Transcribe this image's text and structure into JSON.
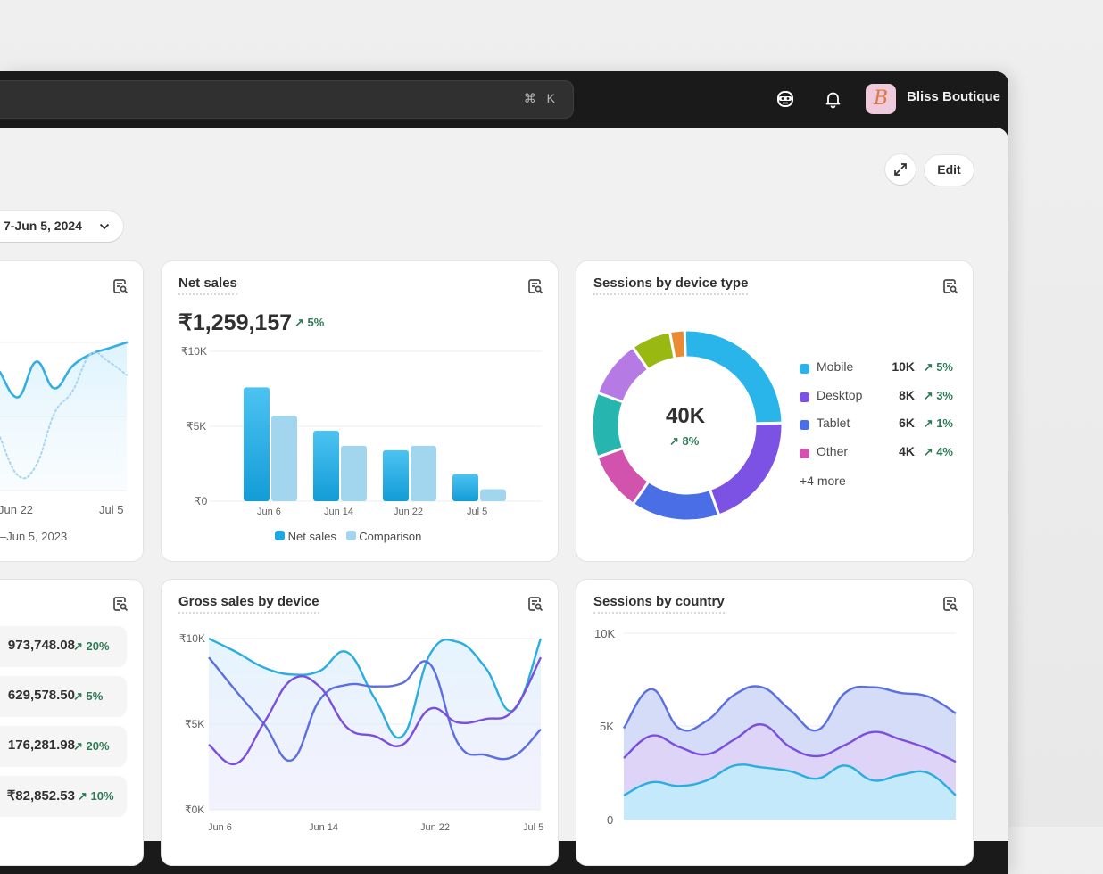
{
  "topbar": {
    "search_shortcut": "⌘ K",
    "store_name": "Bliss Boutique",
    "avatar_letter": "B",
    "icons": [
      "sidekick-face-icon",
      "bell-icon"
    ]
  },
  "header": {
    "edit_label": "Edit",
    "date_range": "7-Jun 5, 2024",
    "expand_icon": "expand-arrows-icon"
  },
  "cards": {
    "partial_line": {
      "x_ticks": [
        "Jun 22",
        "Jul 5"
      ],
      "comparison_range": "–Jun 5, 2023"
    },
    "net_sales": {
      "title": "Net sales",
      "value": "₹1,259,157",
      "change": "5%",
      "y_ticks": [
        "₹10K",
        "₹5K",
        "₹0"
      ],
      "x_ticks": [
        "Jun 6",
        "Jun 14",
        "Jun 22",
        "Jul 5"
      ],
      "legend": [
        "Net sales",
        "Comparison"
      ]
    },
    "device": {
      "title": "Sessions by device type",
      "total": "40K",
      "change": "8%",
      "legend": [
        {
          "label": "Mobile",
          "value": "10K",
          "change": "5%",
          "color": "#29b5ea"
        },
        {
          "label": "Desktop",
          "value": "8K",
          "change": "3%",
          "color": "#7b52e3"
        },
        {
          "label": "Tablet",
          "value": "6K",
          "change": "1%",
          "color": "#4a6ee6"
        },
        {
          "label": "Other",
          "value": "4K",
          "change": "4%",
          "color": "#d253ad"
        }
      ],
      "more": "+4 more"
    },
    "list": {
      "rows": [
        {
          "value": "973,748.08",
          "change": "20%"
        },
        {
          "value": "629,578.50",
          "change": "5%"
        },
        {
          "value": "176,281.98",
          "change": "20%"
        },
        {
          "value": "₹82,852.53",
          "change": "10%"
        }
      ]
    },
    "gross": {
      "title": "Gross sales by device",
      "y_ticks": [
        "₹10K",
        "₹5K",
        "₹0K"
      ],
      "x_ticks": [
        "Jun 6",
        "Jun 14",
        "Jun 22",
        "Jul 5"
      ]
    },
    "country": {
      "title": "Sessions by country",
      "y_ticks": [
        "10K",
        "5K",
        "0"
      ]
    }
  },
  "colors": {
    "trend_green": "#2f7a56",
    "net_sales": "#1ea7e4",
    "comparison": "#a1d6ee",
    "cyan": "#2aaee0",
    "indigo": "#5c6fe0",
    "purple": "#7b4fdc"
  },
  "chart_data": [
    {
      "type": "line",
      "series": [
        {
          "values": [
            8.0,
            6.3,
            8.7,
            6.9,
            8.4,
            9.2,
            9.6,
            10.0
          ],
          "style": "solid"
        },
        {
          "values": [
            3.6,
            1.0,
            1.7,
            5.2,
            6.7,
            9.2,
            8.7,
            7.8
          ],
          "style": "dotted"
        }
      ],
      "x_ticks": [
        "Jun 22",
        "Jul 5"
      ],
      "ylim": [
        0,
        10
      ]
    },
    {
      "type": "bar",
      "title": "Net sales",
      "categories": [
        "Jun 6",
        "Jun 14",
        "Jun 22",
        "Jul 5"
      ],
      "series": [
        {
          "name": "Net sales",
          "values": [
            7.6,
            4.7,
            3.4,
            1.8
          ]
        },
        {
          "name": "Comparison",
          "values": [
            5.7,
            3.7,
            3.7,
            0.8
          ]
        }
      ],
      "ylabel_unit": "₹K",
      "ylim": [
        0,
        10
      ],
      "y_ticks": [
        "₹10K",
        "₹5K",
        "₹0"
      ],
      "legend": "bottom",
      "grid": true
    },
    {
      "type": "pie",
      "title": "Sessions by device type",
      "donut": true,
      "total": "40K",
      "slices": [
        {
          "name": "Mobile",
          "value": 10,
          "color": "#29b5ea"
        },
        {
          "name": "Desktop",
          "value": 8,
          "color": "#7b52e3"
        },
        {
          "name": "Tablet",
          "value": 6,
          "color": "#4a6ee6"
        },
        {
          "name": "Other",
          "value": 4,
          "color": "#d253ad"
        },
        {
          "value": 4.4,
          "color": "#27b5b0"
        },
        {
          "value": 3.9,
          "color": "#b57ae3"
        },
        {
          "value": 2.7,
          "color": "#9ab812"
        },
        {
          "value": 1.0,
          "color": "#e98a34"
        }
      ],
      "legend": "right"
    },
    {
      "type": "line",
      "title": "Gross sales by device",
      "ylim": [
        0,
        10
      ],
      "y_ticks": [
        "₹10K",
        "₹5K",
        "₹0K"
      ],
      "series": [
        {
          "color": "#2aaee0",
          "values": [
            10.0,
            9.2,
            8.3,
            7.9,
            8.1,
            9.2,
            6.5,
            4.3,
            9.1,
            9.8,
            8.3,
            5.8,
            10.0
          ]
        },
        {
          "color": "#5c6fe0",
          "values": [
            8.9,
            6.9,
            5.0,
            2.9,
            6.4,
            7.3,
            7.2,
            7.4,
            8.5,
            3.9,
            3.2,
            3.1,
            4.7
          ]
        },
        {
          "color": "#7b4fdc",
          "values": [
            3.8,
            2.7,
            5.1,
            7.6,
            7.2,
            4.8,
            4.3,
            3.8,
            5.9,
            5.1,
            5.3,
            5.8,
            8.9
          ]
        }
      ],
      "grid": true
    },
    {
      "type": "area",
      "stacked": true,
      "title": "Sessions by country",
      "ylim": [
        0,
        10
      ],
      "y_ticks": [
        "10K",
        "5K",
        "0"
      ],
      "series": [
        {
          "color": "#2aaee0",
          "fill": "#c4e9fa",
          "values": [
            1.3,
            2.0,
            1.8,
            2.1,
            2.9,
            2.8,
            2.6,
            2.2,
            2.9,
            2.1,
            2.4,
            2.5,
            1.3
          ]
        },
        {
          "color": "#7b4fdc",
          "fill": "#ddd4f8",
          "values": [
            2.0,
            2.5,
            2.1,
            1.4,
            1.4,
            2.3,
            1.3,
            1.2,
            1.1,
            2.6,
            1.9,
            1.3,
            1.8
          ]
        },
        {
          "color": "#5c6fe0",
          "fill": "#d4dcf8",
          "values": [
            1.6,
            2.5,
            1.0,
            1.8,
            2.4,
            2.0,
            2.0,
            1.4,
            2.8,
            2.4,
            2.5,
            2.8,
            2.6
          ]
        }
      ],
      "grid": true
    }
  ]
}
